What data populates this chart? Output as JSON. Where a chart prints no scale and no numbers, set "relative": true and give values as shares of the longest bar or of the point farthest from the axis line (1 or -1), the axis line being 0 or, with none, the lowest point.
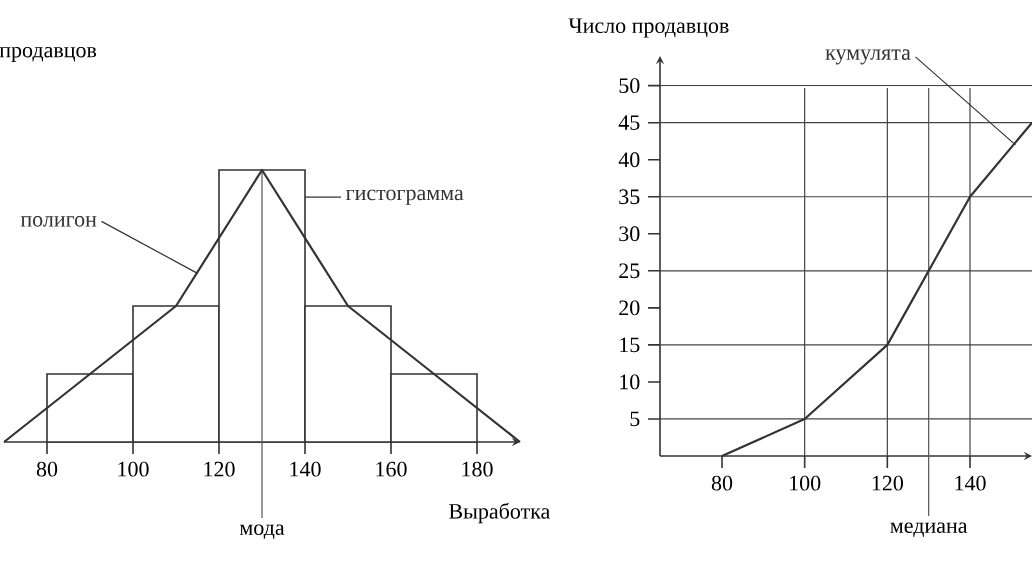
{
  "chart_data": [
    {
      "type": "histogram",
      "xlabel": "Выработка",
      "ylabel": "продавцов",
      "relative": true,
      "tick_labels": "x",
      "xlim": [
        70,
        190
      ],
      "xticks": [
        80,
        100,
        120,
        140,
        160,
        180
      ],
      "series": [
        {
          "type": "histogram",
          "color": "#333333",
          "bins": [
            80,
            100,
            120,
            140,
            160,
            180
          ],
          "values": [
            0.25,
            0.5,
            1,
            0.5,
            0.25
          ]
        },
        {
          "type": "line",
          "color": "#333333",
          "x": [
            70,
            90,
            110,
            130,
            150,
            170,
            190
          ],
          "values": [
            0,
            0.25,
            0.5,
            1,
            0.5,
            0.25,
            0
          ]
        }
      ],
      "ref_lines": [
        {
          "axis": "x",
          "value": 130,
          "label": "мода",
          "color": "#555555"
        }
      ],
      "annotations": [
        {
          "text": "полигон",
          "x": 115,
          "y": 0.62
        },
        {
          "text": "гистограмма",
          "x": 140,
          "y": 0.9
        }
      ]
    },
    {
      "type": "line",
      "ylabel": "Число продавцов",
      "xlim": [
        65,
        155
      ],
      "ylim": [
        0,
        54
      ],
      "xticks": [
        80,
        100,
        120,
        140
      ],
      "yticks": [
        5,
        10,
        15,
        20,
        25,
        30,
        35,
        40,
        45,
        50
      ],
      "series": [
        {
          "color": "#333333",
          "x": [
            80,
            100,
            120,
            140,
            155
          ],
          "values": [
            0,
            5,
            15,
            35,
            45
          ]
        }
      ],
      "ref_lines": [
        {
          "axis": "y",
          "value": 5,
          "color": "#444444"
        },
        {
          "axis": "y",
          "value": 15,
          "color": "#444444"
        },
        {
          "axis": "y",
          "value": 25,
          "color": "#444444"
        },
        {
          "axis": "y",
          "value": 35,
          "color": "#444444"
        },
        {
          "axis": "y",
          "value": 45,
          "color": "#444444"
        },
        {
          "axis": "y",
          "value": 50,
          "color": "#444444"
        },
        {
          "axis": "x",
          "value": 100,
          "color": "#444444"
        },
        {
          "axis": "x",
          "value": 120,
          "color": "#444444"
        },
        {
          "axis": "x",
          "value": 140,
          "color": "#444444"
        },
        {
          "axis": "x",
          "value": 130,
          "label": "медиана",
          "color": "#555555"
        }
      ],
      "annotations": [
        {
          "text": "кумулята",
          "x": 151,
          "y": 42
        }
      ]
    }
  ]
}
